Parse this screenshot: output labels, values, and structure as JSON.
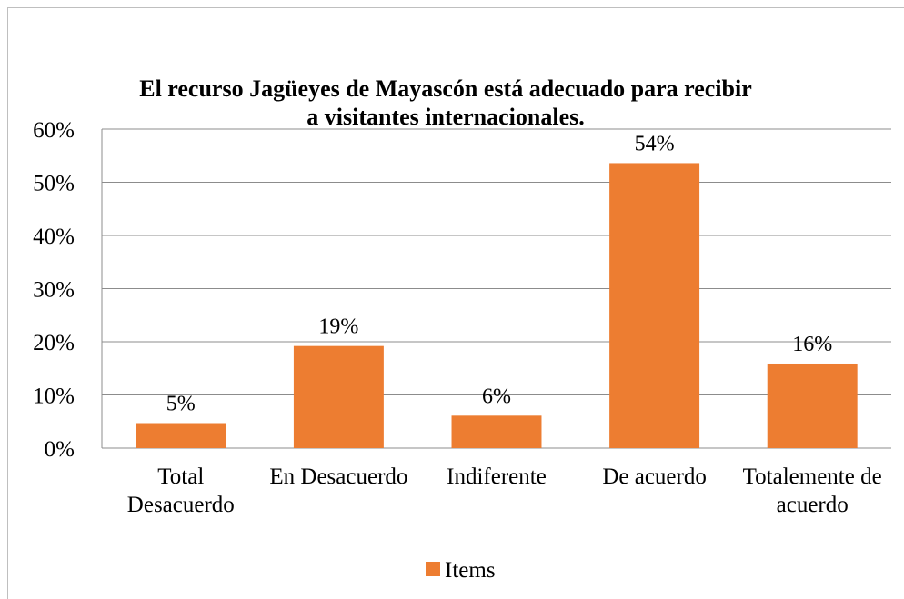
{
  "chart_data": {
    "type": "bar",
    "title": "El recurso Jagüeyes de Mayascón está adecuado para recibir a visitantes internacionales.",
    "categories": [
      "Total Desacuerdo",
      "En Desacuerdo",
      "Indiferente",
      "De acuerdo",
      "Totalemente de acuerdo"
    ],
    "series": [
      {
        "name": "Items",
        "color": "#ed7d31",
        "values": [
          4.7,
          19.2,
          6.1,
          53.6,
          15.9
        ],
        "value_labels": [
          "5%",
          "19%",
          "6%",
          "54%",
          "16%"
        ]
      }
    ],
    "ylim": [
      0,
      60
    ],
    "yticks": [
      {
        "value": 0,
        "label": "0%"
      },
      {
        "value": 10,
        "label": "10%"
      },
      {
        "value": 20,
        "label": "20%"
      },
      {
        "value": 30,
        "label": "30%"
      },
      {
        "value": 40,
        "label": "40%"
      },
      {
        "value": 50,
        "label": "50%"
      },
      {
        "value": 60,
        "label": "60%"
      }
    ],
    "grid": true,
    "legend": "bottom"
  }
}
